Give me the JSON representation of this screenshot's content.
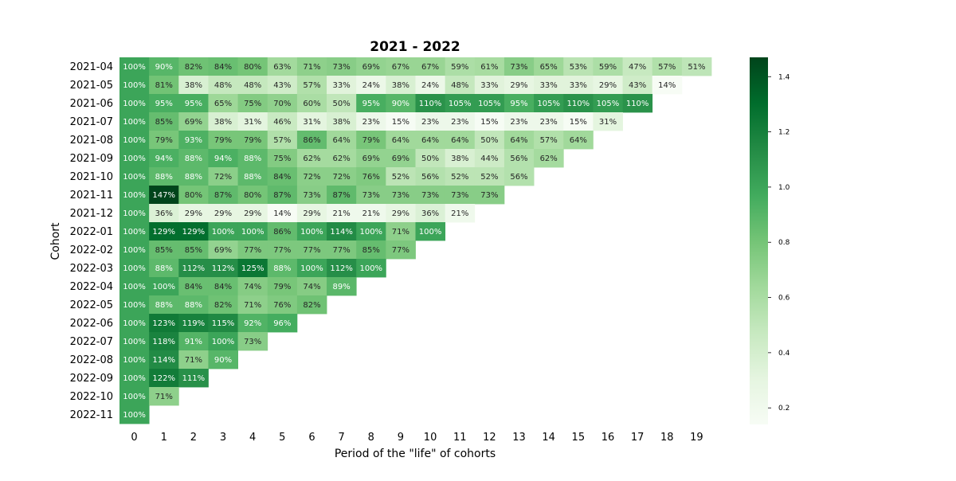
{
  "chart_data": {
    "type": "heatmap",
    "title": "2021 - 2022",
    "xlabel": "Period of the \"life\" of cohorts",
    "ylabel": "Cohort",
    "x": [
      0,
      1,
      2,
      3,
      4,
      5,
      6,
      7,
      8,
      9,
      10,
      11,
      12,
      13,
      14,
      15,
      16,
      17,
      18,
      19
    ],
    "y": [
      "2021-04",
      "2021-05",
      "2021-06",
      "2021-07",
      "2021-08",
      "2021-09",
      "2021-10",
      "2021-11",
      "2021-12",
      "2022-01",
      "2022-02",
      "2022-03",
      "2022-04",
      "2022-05",
      "2022-06",
      "2022-07",
      "2022-08",
      "2022-09",
      "2022-10",
      "2022-11"
    ],
    "values": [
      [
        1.0,
        0.9,
        0.82,
        0.84,
        0.8,
        0.63,
        0.71,
        0.73,
        0.69,
        0.67,
        0.67,
        0.59,
        0.61,
        0.73,
        0.65,
        0.53,
        0.59,
        0.47,
        0.57,
        0.51
      ],
      [
        1.0,
        0.81,
        0.38,
        0.48,
        0.48,
        0.43,
        0.57,
        0.33,
        0.24,
        0.38,
        0.24,
        0.48,
        0.33,
        0.29,
        0.33,
        0.33,
        0.29,
        0.43,
        0.14
      ],
      [
        1.0,
        0.95,
        0.95,
        0.65,
        0.75,
        0.7,
        0.6,
        0.5,
        0.95,
        0.9,
        1.1,
        1.05,
        1.05,
        0.95,
        1.05,
        1.1,
        1.05,
        1.1
      ],
      [
        1.0,
        0.85,
        0.69,
        0.38,
        0.31,
        0.46,
        0.31,
        0.38,
        0.23,
        0.15,
        0.23,
        0.23,
        0.15,
        0.23,
        0.23,
        0.15,
        0.31
      ],
      [
        1.0,
        0.79,
        0.93,
        0.79,
        0.79,
        0.57,
        0.86,
        0.64,
        0.79,
        0.64,
        0.64,
        0.64,
        0.5,
        0.64,
        0.57,
        0.64
      ],
      [
        1.0,
        0.94,
        0.88,
        0.94,
        0.88,
        0.75,
        0.62,
        0.62,
        0.69,
        0.69,
        0.5,
        0.38,
        0.44,
        0.56,
        0.62
      ],
      [
        1.0,
        0.88,
        0.88,
        0.72,
        0.88,
        0.84,
        0.72,
        0.72,
        0.76,
        0.52,
        0.56,
        0.52,
        0.52,
        0.56
      ],
      [
        1.0,
        1.47,
        0.8,
        0.87,
        0.8,
        0.87,
        0.73,
        0.87,
        0.73,
        0.73,
        0.73,
        0.73,
        0.73
      ],
      [
        1.0,
        0.36,
        0.29,
        0.29,
        0.29,
        0.14,
        0.29,
        0.21,
        0.21,
        0.29,
        0.36,
        0.21
      ],
      [
        1.0,
        1.29,
        1.29,
        1.0,
        1.0,
        0.86,
        1.0,
        1.14,
        1.0,
        0.71,
        1.0
      ],
      [
        1.0,
        0.85,
        0.85,
        0.69,
        0.77,
        0.77,
        0.77,
        0.77,
        0.85,
        0.77
      ],
      [
        1.0,
        0.88,
        1.12,
        1.12,
        1.25,
        0.88,
        1.0,
        1.12,
        1.0
      ],
      [
        1.0,
        1.0,
        0.84,
        0.84,
        0.74,
        0.79,
        0.74,
        0.89
      ],
      [
        1.0,
        0.88,
        0.88,
        0.82,
        0.71,
        0.76,
        0.82
      ],
      [
        1.0,
        1.23,
        1.19,
        1.15,
        0.92,
        0.96
      ],
      [
        1.0,
        1.18,
        0.91,
        1.0,
        0.73
      ],
      [
        1.0,
        1.14,
        0.71,
        0.9
      ],
      [
        1.0,
        1.22,
        1.11
      ],
      [
        1.0,
        0.71
      ],
      [
        1.0
      ]
    ],
    "value_format": "percent",
    "colormap": "Greens",
    "colorbar": {
      "ticks": [
        0.2,
        0.4,
        0.6,
        0.8,
        1.0,
        1.2,
        1.4
      ],
      "tick_labels": [
        "0.2",
        "0.4",
        "0.6",
        "0.8",
        "1.0",
        "1.2",
        "1.4"
      ],
      "range": [
        0.14,
        1.47
      ]
    },
    "grid": false,
    "legend": "colorbar-right"
  }
}
